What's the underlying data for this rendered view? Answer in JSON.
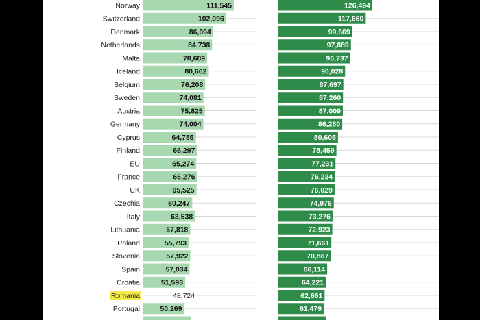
{
  "chart_data": [
    {
      "type": "bar",
      "orientation": "horizontal",
      "name": "left-series",
      "title": "",
      "categories": [
        "Norway",
        "Switzerland",
        "Denmark",
        "Netherlands",
        "Malta",
        "Iceland",
        "Belgium",
        "Sweden",
        "Austria",
        "Germany",
        "Cyprus",
        "Finland",
        "EU",
        "France",
        "UK",
        "Czechia",
        "Italy",
        "Lithuania",
        "Poland",
        "Slovenia",
        "Spain",
        "Croatia",
        "Romania",
        "Portugal"
      ],
      "values": [
        111545,
        102096,
        86094,
        84738,
        78689,
        80662,
        76208,
        74081,
        75825,
        74004,
        64785,
        66297,
        65274,
        66276,
        65525,
        60247,
        63538,
        57818,
        55793,
        57922,
        57034,
        51593,
        48724,
        50269
      ],
      "value_labels": [
        "111,545",
        "102,096",
        "86,094",
        "84,738",
        "78,689",
        "80,662",
        "76,208",
        "74,081",
        "75,825",
        "74,004",
        "64,785",
        "66,297",
        "65,274",
        "66,276",
        "65,525",
        "60,247",
        "63,538",
        "57,818",
        "55,793",
        "57,922",
        "57,034",
        "51,593",
        "48,724",
        "50,269"
      ],
      "highlight": "Romania",
      "xlim": [
        0,
        170000
      ]
    },
    {
      "type": "bar",
      "orientation": "horizontal",
      "name": "right-series",
      "title": "",
      "categories": [
        "Norway",
        "Switzerland",
        "Denmark",
        "Netherlands",
        "Malta",
        "Iceland",
        "Belgium",
        "Sweden",
        "Austria",
        "Germany",
        "Cyprus",
        "Finland",
        "EU",
        "France",
        "UK",
        "Czechia",
        "Italy",
        "Lithuania",
        "Poland",
        "Slovenia",
        "Spain",
        "Croatia",
        "Romania",
        "Portugal"
      ],
      "values": [
        126494,
        117660,
        99669,
        97889,
        96737,
        90028,
        87697,
        87260,
        87009,
        86280,
        80605,
        78459,
        77231,
        76234,
        76029,
        74976,
        73276,
        72923,
        71661,
        70867,
        66114,
        64221,
        62661,
        61479
      ],
      "value_labels": [
        "126,494",
        "117,660",
        "99,669",
        "97,889",
        "96,737",
        "90,028",
        "87,697",
        "87,260",
        "87,009",
        "86,280",
        "80,605",
        "78,459",
        "77,231",
        "76,234",
        "76,029",
        "74,976",
        "73,276",
        "72,923",
        "71,661",
        "70,867",
        "66,114",
        "64,221",
        "62,661",
        "61,479"
      ],
      "xlim": [
        0,
        170000
      ]
    }
  ],
  "colors": {
    "left_bar": "#a8d8b0",
    "right_bar": "#2e8b4a",
    "highlight_bg": "#f5e94a",
    "gridline": "#d9d9d9"
  }
}
